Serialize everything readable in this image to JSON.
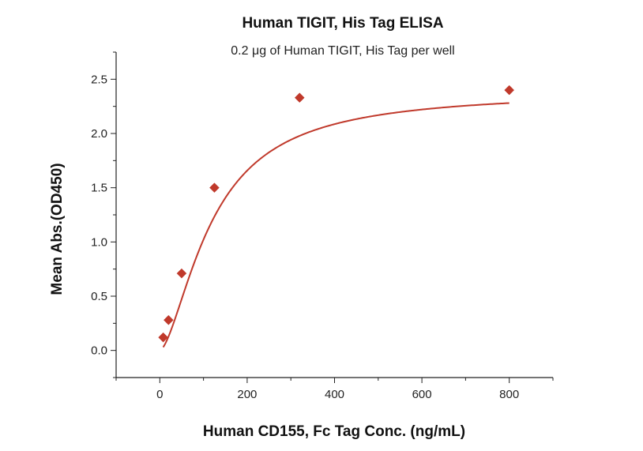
{
  "chart_data": {
    "type": "scatter",
    "title": "Human TIGIT, His Tag ELISA",
    "subtitle": "0.2 μg of Human TIGIT, His Tag per well",
    "xlabel": "Human CD155, Fc Tag Conc. (ng/mL)",
    "ylabel": "Mean Abs.(OD450)",
    "xlim": [
      -100,
      900
    ],
    "ylim": [
      -0.25,
      2.75
    ],
    "x_ticks": [
      0,
      200,
      400,
      600,
      800
    ],
    "y_ticks": [
      0.0,
      0.5,
      1.0,
      1.5,
      2.0,
      2.5
    ],
    "x_tick_labels": [
      "0",
      "200",
      "400",
      "600",
      "800"
    ],
    "y_tick_labels": [
      "0.0",
      "0.5",
      "1.0",
      "1.5",
      "2.0",
      "2.5"
    ],
    "grid": false,
    "series": [
      {
        "color": "#c0392b",
        "marker": "diamond",
        "x": [
          7.8,
          20,
          50,
          125,
          320,
          800
        ],
        "y": [
          0.12,
          0.28,
          0.71,
          1.5,
          2.33,
          2.4
        ],
        "fit": "four-parameter-logistic"
      }
    ]
  }
}
